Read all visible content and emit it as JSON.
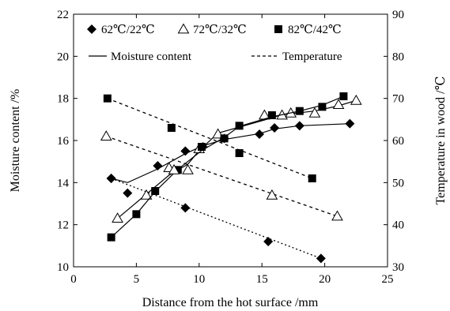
{
  "chart_data": {
    "type": "scatter",
    "xlabel": "Distance from the hot surface /mm",
    "ylabel_left": "Moisture content /%",
    "ylabel_right": "Temperature in wood /℃",
    "xlim": [
      0,
      25
    ],
    "ylim_left": [
      10,
      22
    ],
    "ylim_right": [
      30,
      90
    ],
    "xticks": [
      "0",
      "5",
      "10",
      "15",
      "20",
      "25"
    ],
    "yticks_left": [
      "10",
      "12",
      "14",
      "16",
      "18",
      "20",
      "22"
    ],
    "yticks_right": [
      "30",
      "40",
      "50",
      "60",
      "70",
      "80",
      "90"
    ],
    "grid": false,
    "legend": {
      "placement": "top",
      "markers": [
        {
          "label": "62℃/22℃",
          "marker": "diamond"
        },
        {
          "label": "72℃/32℃",
          "marker": "open-triangle"
        },
        {
          "label": "82℃/42℃",
          "marker": "square"
        }
      ],
      "lines": [
        {
          "label": "Moisture content",
          "style": "solid"
        },
        {
          "label": "Temperature",
          "style": "dashed"
        }
      ]
    },
    "series": [
      {
        "name": "62℃/22℃",
        "kind": "moisture",
        "axis": "left",
        "marker": "diamond",
        "x": [
          3.0,
          4.3,
          6.7,
          8.9,
          10.3,
          12.0,
          14.8,
          16.0,
          18.0,
          22.0
        ],
        "y": [
          14.2,
          13.5,
          14.8,
          15.5,
          15.7,
          16.1,
          16.3,
          16.6,
          16.7,
          16.8
        ]
      },
      {
        "name": "72℃/32℃",
        "kind": "moisture",
        "axis": "left",
        "marker": "open-triangle",
        "x": [
          3.5,
          5.8,
          7.6,
          9.1,
          10.0,
          11.5,
          15.2,
          16.6,
          17.3,
          19.2,
          21.1,
          22.5
        ],
        "y": [
          12.3,
          13.4,
          14.7,
          14.6,
          15.6,
          16.3,
          17.2,
          17.2,
          17.3,
          17.3,
          17.7,
          17.9
        ]
      },
      {
        "name": "82℃/42℃",
        "kind": "moisture",
        "axis": "left",
        "marker": "square",
        "x": [
          3.0,
          5.0,
          6.5,
          8.3,
          10.2,
          12.0,
          13.2,
          15.8,
          18.0,
          19.8,
          21.5
        ],
        "y": [
          11.4,
          12.5,
          13.6,
          14.6,
          15.7,
          16.1,
          16.7,
          17.2,
          17.4,
          17.6,
          18.1
        ]
      },
      {
        "name": "62℃/22℃",
        "kind": "temperature",
        "axis": "right",
        "marker": "diamond",
        "x": [
          3.0,
          8.9,
          15.5,
          19.7
        ],
        "y": [
          51.0,
          44.0,
          36.0,
          32.0
        ]
      },
      {
        "name": "72℃/32℃",
        "kind": "temperature",
        "axis": "right",
        "marker": "open-triangle",
        "x": [
          2.6,
          8.0,
          15.8,
          21.0
        ],
        "y": [
          61.0,
          53.0,
          47.0,
          42.0
        ]
      },
      {
        "name": "82℃/42℃",
        "kind": "temperature",
        "axis": "right",
        "marker": "square",
        "x": [
          2.7,
          7.8,
          13.2,
          19.0
        ],
        "y": [
          70.0,
          63.0,
          57.0,
          51.0
        ]
      }
    ]
  }
}
